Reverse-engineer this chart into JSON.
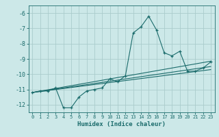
{
  "xlabel": "Humidex (Indice chaleur)",
  "bg_color": "#cce8e8",
  "grid_color": "#aacccc",
  "line_color": "#1a6b6b",
  "xlim": [
    -0.5,
    23.5
  ],
  "ylim": [
    -12.5,
    -5.5
  ],
  "xticks": [
    0,
    1,
    2,
    3,
    4,
    5,
    6,
    7,
    8,
    9,
    10,
    11,
    12,
    13,
    14,
    15,
    16,
    17,
    18,
    19,
    20,
    21,
    22,
    23
  ],
  "yticks": [
    -12,
    -11,
    -10,
    -9,
    -8,
    -7,
    -6
  ],
  "series": {
    "main": {
      "x": [
        0,
        1,
        2,
        3,
        4,
        5,
        6,
        7,
        8,
        9,
        10,
        11,
        12,
        13,
        14,
        15,
        16,
        17,
        18,
        19,
        20,
        21,
        22,
        23
      ],
      "y": [
        -11.2,
        -11.1,
        -11.1,
        -10.9,
        -12.2,
        -12.2,
        -11.5,
        -11.1,
        -11.0,
        -10.9,
        -10.3,
        -10.5,
        -10.1,
        -7.3,
        -6.9,
        -6.2,
        -7.1,
        -8.6,
        -8.8,
        -8.5,
        -9.8,
        -9.8,
        -9.6,
        -9.2
      ]
    },
    "line1": {
      "x": [
        0,
        23
      ],
      "y": [
        -11.2,
        -9.15
      ]
    },
    "line2": {
      "x": [
        0,
        23
      ],
      "y": [
        -11.2,
        -9.5
      ]
    },
    "line3": {
      "x": [
        0,
        23
      ],
      "y": [
        -11.2,
        -9.7
      ]
    }
  }
}
